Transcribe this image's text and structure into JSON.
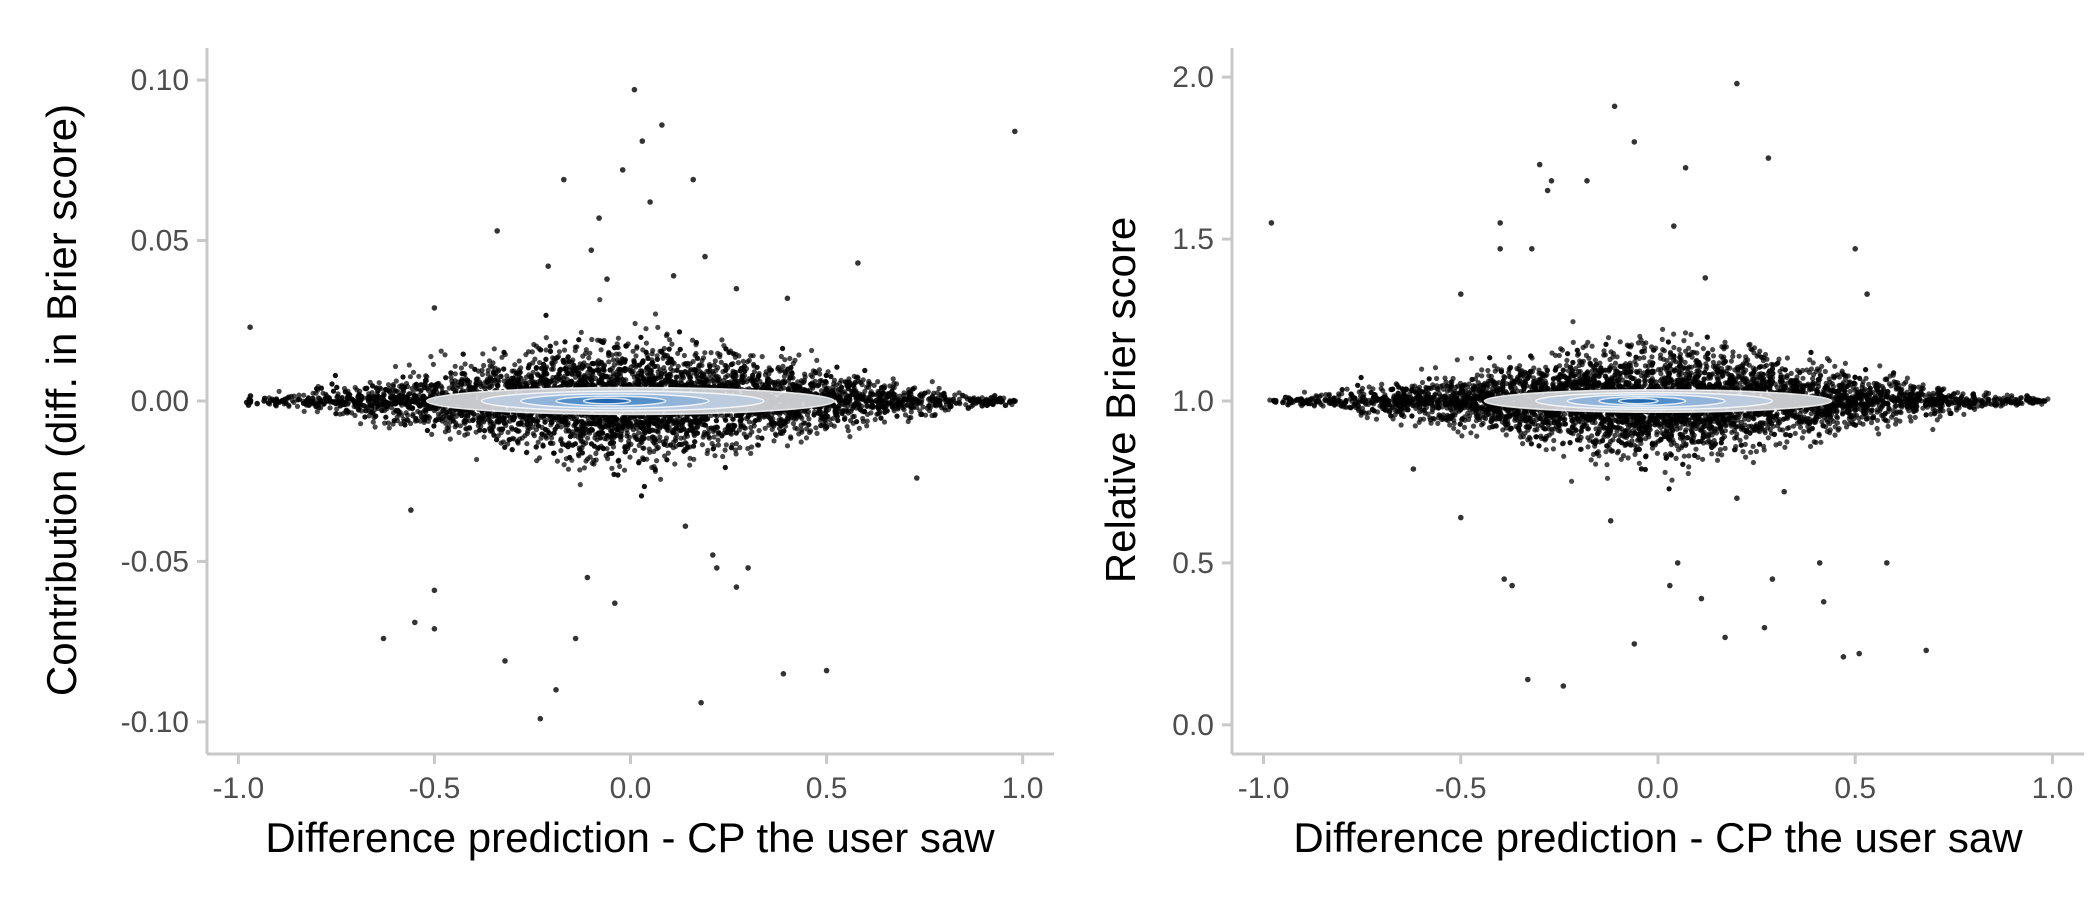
{
  "chart_data": [
    {
      "type": "scatter",
      "title": "",
      "xlabel": "Difference prediction  - CP the user saw",
      "ylabel": "Contribution (diff. in Brier score)",
      "xlim": [
        -1.08,
        1.08
      ],
      "ylim": [
        -0.11,
        0.11
      ],
      "xticks": [
        -1.0,
        -0.5,
        0.0,
        0.5,
        1.0
      ],
      "xtick_labels": [
        "-1.0",
        "-0.5",
        "0.0",
        "0.5",
        "1.0"
      ],
      "yticks": [
        -0.1,
        -0.05,
        0.0,
        0.05,
        0.1
      ],
      "ytick_labels": [
        "-0.10",
        "-0.05",
        "0.00",
        "0.05",
        "0.10"
      ],
      "grid": false,
      "center_y": 0.0,
      "spread_y": 0.012,
      "point_color": "#000000",
      "density_colors": [
        "#d7d9dd",
        "#bccbe0",
        "#8fb2d8",
        "#4d8dc8",
        "#2166ac"
      ],
      "density_overlay": [
        {
          "level": 1,
          "cx": 0.0,
          "cy": 0.0,
          "rx": 0.52,
          "ry": 0.0042
        },
        {
          "level": 2,
          "cx": -0.02,
          "cy": 0.0,
          "rx": 0.36,
          "ry": 0.0031
        },
        {
          "level": 3,
          "cx": -0.04,
          "cy": 0.0,
          "rx": 0.24,
          "ry": 0.0022
        },
        {
          "level": 4,
          "cx": -0.05,
          "cy": 0.0,
          "rx": 0.14,
          "ry": 0.0015
        },
        {
          "level": 5,
          "cx": -0.06,
          "cy": 0.0,
          "rx": 0.06,
          "ry": 0.0009
        }
      ],
      "outliers": [
        [
          -0.97,
          0.023
        ],
        [
          0.01,
          0.097
        ],
        [
          0.08,
          0.086
        ],
        [
          0.03,
          0.081
        ],
        [
          0.98,
          0.084
        ],
        [
          -0.17,
          0.069
        ],
        [
          0.16,
          0.069
        ],
        [
          -0.02,
          0.072
        ],
        [
          0.05,
          0.062
        ],
        [
          -0.08,
          0.057
        ],
        [
          -0.34,
          0.053
        ],
        [
          0.58,
          0.043
        ],
        [
          -0.1,
          0.047
        ],
        [
          0.19,
          0.045
        ],
        [
          -0.5,
          0.029
        ],
        [
          -0.06,
          0.038
        ],
        [
          -0.21,
          0.042
        ],
        [
          0.11,
          0.039
        ],
        [
          0.4,
          0.032
        ],
        [
          0.27,
          0.035
        ],
        [
          0.22,
          -0.052
        ],
        [
          0.27,
          -0.058
        ],
        [
          0.3,
          -0.052
        ],
        [
          -0.5,
          -0.059
        ],
        [
          -0.5,
          -0.071
        ],
        [
          -0.55,
          -0.069
        ],
        [
          -0.63,
          -0.074
        ],
        [
          -0.32,
          -0.081
        ],
        [
          -0.19,
          -0.09
        ],
        [
          -0.23,
          -0.099
        ],
        [
          0.18,
          -0.094
        ],
        [
          0.39,
          -0.085
        ],
        [
          0.5,
          -0.084
        ],
        [
          -0.14,
          -0.074
        ],
        [
          -0.04,
          -0.063
        ],
        [
          -0.11,
          -0.055
        ],
        [
          0.21,
          -0.048
        ],
        [
          -0.56,
          -0.034
        ],
        [
          0.73,
          -0.024
        ],
        [
          0.14,
          -0.039
        ]
      ]
    },
    {
      "type": "scatter",
      "title": "",
      "xlabel": "Difference prediction - CP the user saw",
      "ylabel": "Relative Brier score",
      "xlim": [
        -1.08,
        1.08
      ],
      "ylim": [
        -0.09,
        2.09
      ],
      "xticks": [
        -1.0,
        -0.5,
        0.0,
        0.5,
        1.0
      ],
      "xtick_labels": [
        "-1.0",
        "-0.5",
        "0.0",
        "0.5",
        "1.0"
      ],
      "yticks": [
        0.0,
        0.5,
        1.0,
        1.5,
        2.0
      ],
      "ytick_labels": [
        "0.0",
        "0.5",
        "1.0",
        "1.5",
        "2.0"
      ],
      "grid": false,
      "center_y": 1.0,
      "spread_y": 0.11,
      "point_color": "#000000",
      "density_colors": [
        "#d7d9dd",
        "#bccbe0",
        "#8fb2d8",
        "#4d8dc8",
        "#2166ac"
      ],
      "density_overlay": [
        {
          "level": 1,
          "cx": 0.0,
          "cy": 1.0,
          "rx": 0.44,
          "ry": 0.035
        },
        {
          "level": 2,
          "cx": -0.01,
          "cy": 1.0,
          "rx": 0.3,
          "ry": 0.026
        },
        {
          "level": 3,
          "cx": -0.03,
          "cy": 1.0,
          "rx": 0.2,
          "ry": 0.019
        },
        {
          "level": 4,
          "cx": -0.04,
          "cy": 1.0,
          "rx": 0.11,
          "ry": 0.013
        },
        {
          "level": 5,
          "cx": -0.05,
          "cy": 1.0,
          "rx": 0.05,
          "ry": 0.008
        }
      ],
      "outliers": [
        [
          -0.98,
          1.55
        ],
        [
          -0.11,
          1.91
        ],
        [
          0.2,
          1.98
        ],
        [
          0.28,
          1.75
        ],
        [
          -0.06,
          1.8
        ],
        [
          -0.3,
          1.73
        ],
        [
          -0.27,
          1.68
        ],
        [
          -0.18,
          1.68
        ],
        [
          -0.28,
          1.65
        ],
        [
          0.07,
          1.72
        ],
        [
          -0.4,
          1.55
        ],
        [
          -0.4,
          1.47
        ],
        [
          -0.32,
          1.47
        ],
        [
          0.5,
          1.47
        ],
        [
          -0.5,
          1.33
        ],
        [
          0.53,
          1.33
        ],
        [
          0.12,
          1.38
        ],
        [
          0.04,
          1.54
        ],
        [
          -0.33,
          0.14
        ],
        [
          -0.24,
          0.12
        ],
        [
          -0.06,
          0.25
        ],
        [
          0.17,
          0.27
        ],
        [
          0.27,
          0.3
        ],
        [
          0.47,
          0.21
        ],
        [
          0.51,
          0.22
        ],
        [
          0.68,
          0.23
        ],
        [
          -0.37,
          0.43
        ],
        [
          -0.39,
          0.45
        ],
        [
          0.05,
          0.5
        ],
        [
          0.03,
          0.43
        ],
        [
          0.11,
          0.39
        ],
        [
          0.29,
          0.45
        ],
        [
          0.41,
          0.5
        ],
        [
          0.58,
          0.5
        ],
        [
          0.42,
          0.38
        ],
        [
          -0.5,
          0.64
        ],
        [
          -0.12,
          0.63
        ],
        [
          0.2,
          0.7
        ],
        [
          -0.62,
          0.79
        ],
        [
          0.32,
          0.72
        ]
      ]
    }
  ]
}
